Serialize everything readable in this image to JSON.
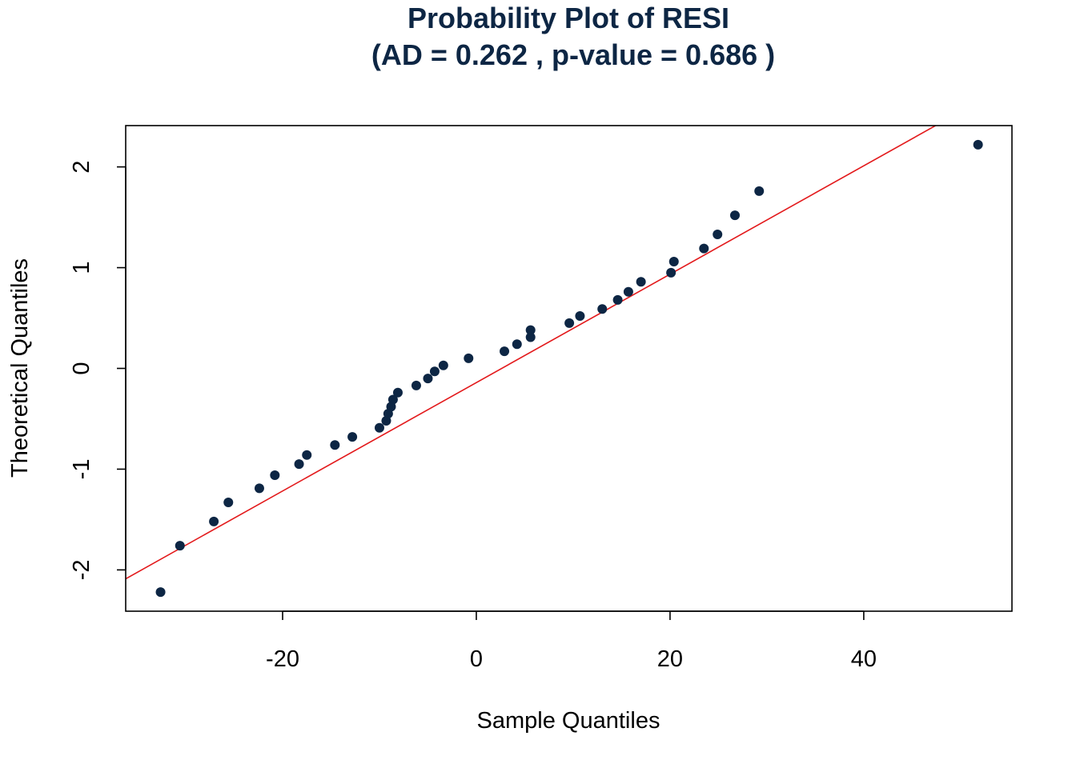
{
  "chart_data": {
    "type": "scatter",
    "title": "Probability Plot of RESI",
    "subtitle": "(AD = 0.262 , p-value = 0.686 )",
    "xlabel": "Sample Quantiles",
    "ylabel": "Theoretical Quantiles",
    "xlim": [
      -36.2,
      55.3
    ],
    "ylim": [
      -2.41,
      2.41
    ],
    "xticks": [
      -20,
      0,
      20,
      40
    ],
    "yticks": [
      -2,
      -1,
      0,
      1,
      2
    ],
    "xtick_labels": [
      "-20",
      "0",
      "20",
      "40"
    ],
    "ytick_labels": [
      "-2",
      "-1",
      "0",
      "1",
      "2"
    ],
    "grid": false,
    "point_color": "#0d2644",
    "line_color": "#e31a1c",
    "reference_line": {
      "intercept": -0.141,
      "slope": 0.0538
    },
    "points": [
      {
        "x": -32.6,
        "y": -2.22
      },
      {
        "x": -30.6,
        "y": -1.76
      },
      {
        "x": -27.1,
        "y": -1.52
      },
      {
        "x": -25.6,
        "y": -1.33
      },
      {
        "x": -22.4,
        "y": -1.19
      },
      {
        "x": -20.8,
        "y": -1.06
      },
      {
        "x": -18.3,
        "y": -0.95
      },
      {
        "x": -17.5,
        "y": -0.86
      },
      {
        "x": -14.6,
        "y": -0.76
      },
      {
        "x": -12.8,
        "y": -0.68
      },
      {
        "x": -10.0,
        "y": -0.59
      },
      {
        "x": -9.3,
        "y": -0.52
      },
      {
        "x": -9.1,
        "y": -0.45
      },
      {
        "x": -8.8,
        "y": -0.38
      },
      {
        "x": -8.6,
        "y": -0.31
      },
      {
        "x": -8.1,
        "y": -0.24
      },
      {
        "x": -6.2,
        "y": -0.17
      },
      {
        "x": -5.0,
        "y": -0.1
      },
      {
        "x": -4.3,
        "y": -0.03
      },
      {
        "x": -3.4,
        "y": 0.03
      },
      {
        "x": -0.8,
        "y": 0.1
      },
      {
        "x": 2.9,
        "y": 0.17
      },
      {
        "x": 4.2,
        "y": 0.24
      },
      {
        "x": 5.6,
        "y": 0.31
      },
      {
        "x": 5.6,
        "y": 0.38
      },
      {
        "x": 9.6,
        "y": 0.45
      },
      {
        "x": 10.7,
        "y": 0.52
      },
      {
        "x": 13.0,
        "y": 0.59
      },
      {
        "x": 14.6,
        "y": 0.68
      },
      {
        "x": 15.7,
        "y": 0.76
      },
      {
        "x": 17.0,
        "y": 0.86
      },
      {
        "x": 20.1,
        "y": 0.95
      },
      {
        "x": 20.4,
        "y": 1.06
      },
      {
        "x": 23.5,
        "y": 1.19
      },
      {
        "x": 24.9,
        "y": 1.33
      },
      {
        "x": 26.7,
        "y": 1.52
      },
      {
        "x": 29.2,
        "y": 1.76
      },
      {
        "x": 51.8,
        "y": 2.22
      }
    ]
  }
}
